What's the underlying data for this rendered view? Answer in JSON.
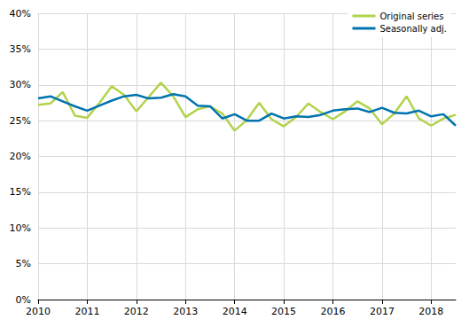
{
  "chart_data": {
    "type": "line",
    "categories": [
      "2010",
      null,
      null,
      null,
      "2011",
      null,
      null,
      null,
      "2012",
      null,
      null,
      null,
      "2013",
      null,
      null,
      null,
      "2014",
      null,
      null,
      null,
      "2015",
      null,
      null,
      null,
      "2016",
      null,
      null,
      null,
      "2017",
      null,
      null,
      null,
      "2018",
      null,
      null
    ],
    "series": [
      {
        "name": "Original series",
        "color": "#b1d34b",
        "values": [
          27.2,
          27.4,
          29.0,
          25.7,
          25.4,
          27.5,
          29.8,
          28.6,
          26.3,
          28.3,
          30.3,
          28.4,
          25.5,
          26.6,
          27.0,
          26.0,
          23.6,
          25.1,
          27.5,
          25.2,
          24.2,
          25.5,
          27.4,
          26.2,
          25.2,
          26.3,
          27.7,
          26.7,
          24.5,
          26.0,
          28.4,
          25.3,
          24.3,
          25.3,
          25.8
        ]
      },
      {
        "name": "Seasonally adj.",
        "color": "#0073b0",
        "values": [
          28.1,
          28.4,
          27.7,
          27.0,
          26.4,
          27.1,
          27.8,
          28.4,
          28.6,
          28.1,
          28.2,
          28.7,
          28.4,
          27.1,
          27.0,
          25.3,
          25.9,
          25.0,
          25.0,
          26.0,
          25.3,
          25.6,
          25.5,
          25.8,
          26.4,
          26.6,
          26.7,
          26.2,
          26.8,
          26.1,
          26.0,
          26.4,
          25.6,
          25.9,
          24.3
        ]
      }
    ],
    "ylim": [
      0,
      40
    ],
    "yticks": [
      {
        "value": 0,
        "label": "0%"
      },
      {
        "value": 5,
        "label": "5%"
      },
      {
        "value": 10,
        "label": "10%"
      },
      {
        "value": 15,
        "label": "15%"
      },
      {
        "value": 20,
        "label": "20%"
      },
      {
        "value": 25,
        "label": "25%"
      },
      {
        "value": 30,
        "label": "30%"
      },
      {
        "value": 35,
        "label": "35%"
      },
      {
        "value": 40,
        "label": "40%"
      }
    ],
    "grid": true,
    "legend": "upper right"
  }
}
